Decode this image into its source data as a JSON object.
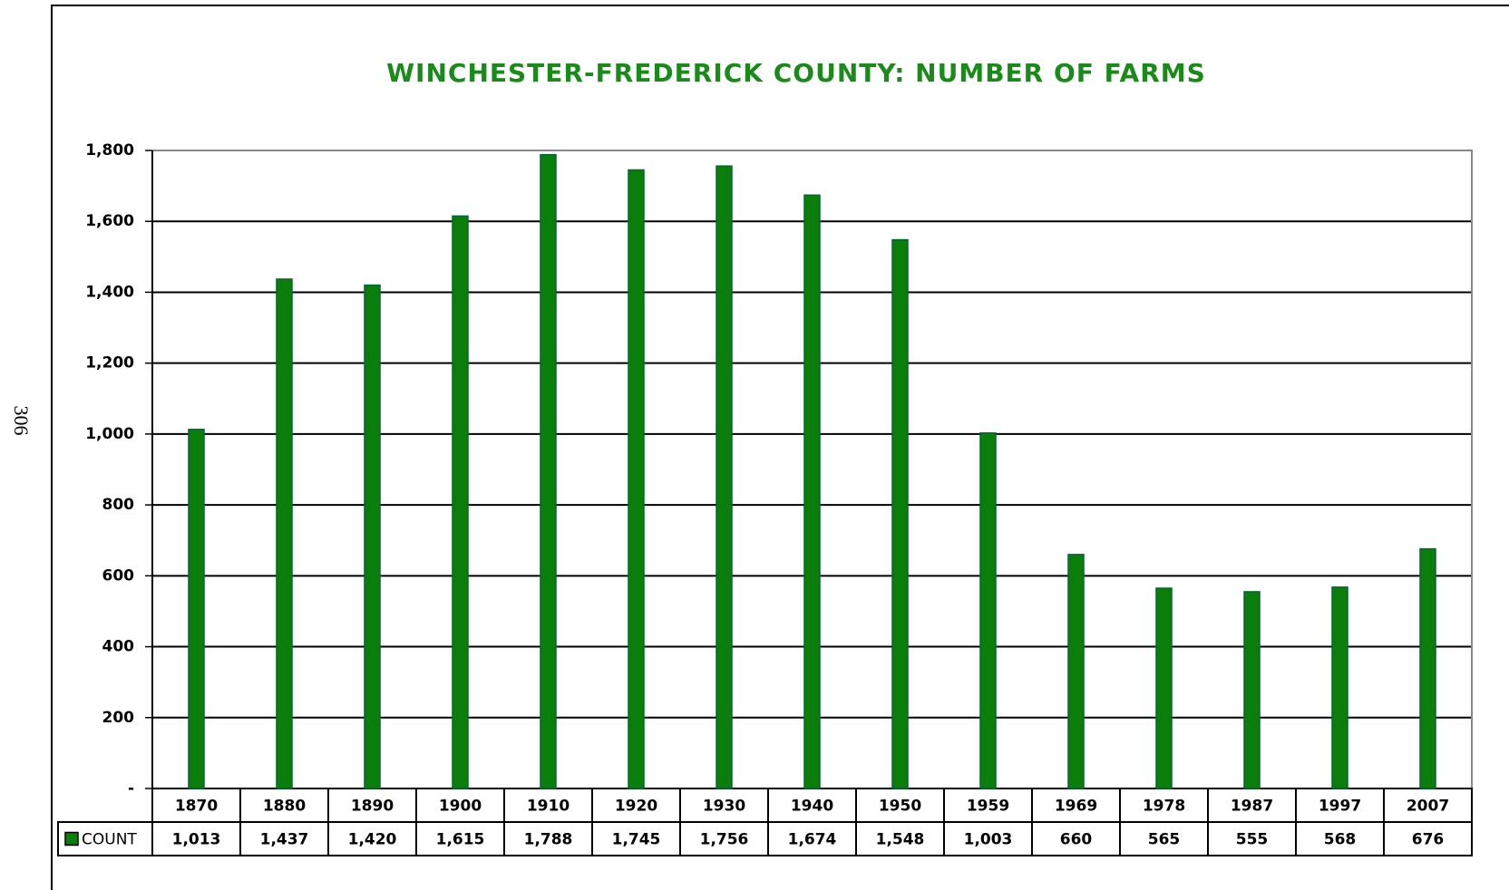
{
  "page_number": "306",
  "chart_data": {
    "type": "bar",
    "title": "WINCHESTER-FREDERICK COUNTY:  NUMBER OF FARMS",
    "categories": [
      "1870",
      "1880",
      "1890",
      "1900",
      "1910",
      "1920",
      "1930",
      "1940",
      "1950",
      "1959",
      "1969",
      "1978",
      "1987",
      "1997",
      "2007"
    ],
    "series": [
      {
        "name": "COUNT",
        "color": "#0b7d0b",
        "values": [
          1013,
          1437,
          1420,
          1615,
          1788,
          1745,
          1756,
          1674,
          1548,
          1003,
          660,
          565,
          555,
          568,
          676
        ],
        "value_labels": [
          "1,013",
          "1,437",
          "1,420",
          "1,615",
          "1,788",
          "1,745",
          "1,756",
          "1,674",
          "1,548",
          "1,003",
          "660",
          "565",
          "555",
          "568",
          "676"
        ]
      }
    ],
    "ylim": [
      0,
      1800
    ],
    "yticks": [
      {
        "value": 0,
        "label": "-"
      },
      200,
      400,
      600,
      800,
      {
        "value": 1000,
        "label": "1,000"
      },
      {
        "value": 1200,
        "label": "1,200"
      },
      {
        "value": 1400,
        "label": "1,400"
      },
      {
        "value": 1600,
        "label": "1,600"
      },
      {
        "value": 1800,
        "label": "1,800"
      }
    ],
    "grid": true
  }
}
